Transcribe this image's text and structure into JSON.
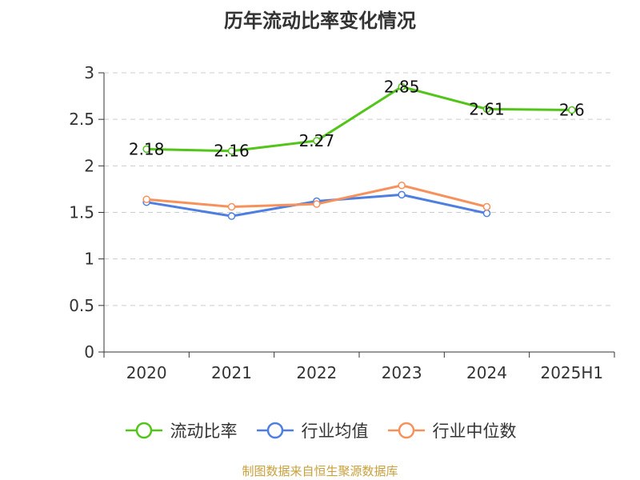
{
  "chart_data": {
    "type": "line",
    "title": "历年流动比率变化情况",
    "categories": [
      "2020",
      "2021",
      "2022",
      "2023",
      "2024",
      "2025H1"
    ],
    "ylim": [
      0,
      3
    ],
    "yticks": [
      "0",
      "0.5",
      "1",
      "1.5",
      "2",
      "2.5",
      "3"
    ],
    "grid": true,
    "legend_position": "bottom",
    "series": [
      {
        "name": "流动比率",
        "color": "#52c41a",
        "values": [
          2.18,
          2.16,
          2.27,
          2.85,
          2.61,
          2.6
        ],
        "labels": [
          "2.18",
          "2.16",
          "2.27",
          "2.85",
          "2.61",
          "2.6"
        ]
      },
      {
        "name": "行业均值",
        "color": "#4e7fe0",
        "values": [
          1.61,
          1.46,
          1.62,
          1.69,
          1.49,
          null
        ]
      },
      {
        "name": "行业中位数",
        "color": "#f7915c",
        "values": [
          1.64,
          1.56,
          1.59,
          1.79,
          1.56,
          null
        ]
      }
    ]
  },
  "source_note": "制图数据来自恒生聚源数据库"
}
